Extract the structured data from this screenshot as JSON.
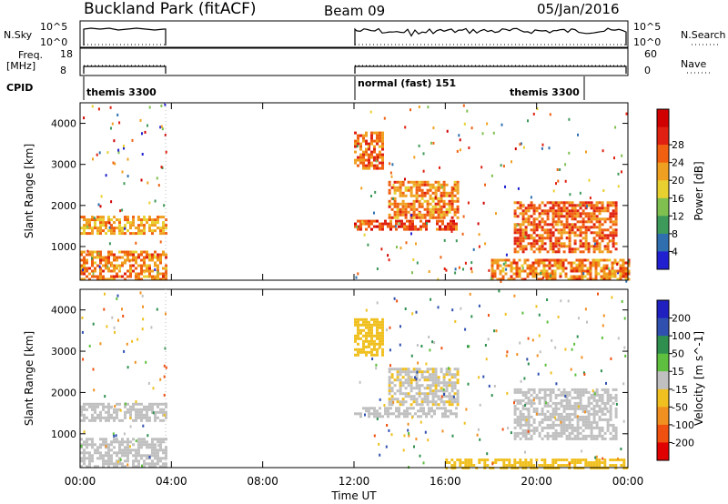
{
  "header": {
    "title": "Buckland Park (fitACF)",
    "beam": "Beam 09",
    "date": "05/Jan/2016"
  },
  "aux_panels": {
    "nsky_label": "N.Sky",
    "nsky_ticks": [
      "10^5",
      "10^0"
    ],
    "nsearch_label": "N.Search",
    "nsearch_ticks": [
      "10^5",
      "10^0"
    ],
    "freq_label_1": "Freq.",
    "freq_label_2": "[MHz]",
    "freq_ticks": [
      "18",
      "8"
    ],
    "nave_label": "Nave",
    "nave_ticks": [
      "60",
      "0"
    ],
    "cpid_label": "CPID",
    "cpid_items": [
      {
        "text": "themis 3300",
        "start": 0,
        "end": 3.75
      },
      {
        "text": "normal (fast) 151",
        "start": 12.0,
        "end": 21.5
      },
      {
        "text": "themis 3300",
        "start": 21.5,
        "end": 24.0
      }
    ]
  },
  "chart_data": [
    {
      "type": "heatmap",
      "name": "power",
      "xlabel": "",
      "ylabel": "Slant Range [km]",
      "xlim": [
        0,
        24
      ],
      "ylim": [
        180,
        4500
      ],
      "yticks": [
        "1000",
        "2000",
        "3000",
        "4000"
      ],
      "colorbar_label": "Power [dB]",
      "colorbar_ticks": [
        "4",
        "8",
        "12",
        "16",
        "20",
        "24",
        "28"
      ],
      "colors": [
        "#2020d0",
        "#2f6fb0",
        "#3e9a5a",
        "#7fc050",
        "#e8d030",
        "#f0a020",
        "#f06010",
        "#e02010",
        "#d00000"
      ],
      "data_gaps": [
        [
          3.75,
          12.0
        ]
      ],
      "bands": [
        {
          "t": [
            0,
            3.75
          ],
          "r": [
            1300,
            1750
          ],
          "v": 20
        },
        {
          "t": [
            0,
            3.75
          ],
          "r": [
            200,
            900
          ],
          "v": 22
        },
        {
          "t": [
            12,
            16.5
          ],
          "r": [
            1400,
            1650
          ],
          "v": 26
        },
        {
          "t": [
            13.5,
            16.5
          ],
          "r": [
            1700,
            2600
          ],
          "v": 22
        },
        {
          "t": [
            12,
            13.3
          ],
          "r": [
            2900,
            3800
          ],
          "v": 24
        },
        {
          "t": [
            19,
            23.5
          ],
          "r": [
            900,
            2100
          ],
          "v": 24
        },
        {
          "t": [
            18,
            24
          ],
          "r": [
            200,
            700
          ],
          "v": 22
        }
      ]
    },
    {
      "type": "heatmap",
      "name": "velocity",
      "xlabel": "Time UT",
      "ylabel": "Slant Range [km]",
      "xlim": [
        0,
        24
      ],
      "ylim": [
        180,
        4500
      ],
      "xticks": [
        "00:00",
        "04:00",
        "08:00",
        "12:00",
        "16:00",
        "20:00",
        "00:00"
      ],
      "yticks": [
        "1000",
        "2000",
        "3000",
        "4000"
      ],
      "colorbar_label": "Velocity [m s^-1]",
      "colorbar_ticks": [
        "200",
        "100",
        "50",
        "15",
        "-15",
        "-50",
        "-100",
        "-200"
      ],
      "colors": [
        "#2020c0",
        "#3050b0",
        "#2f8f4f",
        "#5fbf3f",
        "#c0c0c0",
        "#f0c020",
        "#f09020",
        "#f05010",
        "#e00000"
      ],
      "data_gaps": [
        [
          3.75,
          12.0
        ]
      ],
      "bands": [
        {
          "t": [
            0,
            3.75
          ],
          "r": [
            1300,
            1750
          ],
          "v": 0
        },
        {
          "t": [
            0,
            3.75
          ],
          "r": [
            200,
            900
          ],
          "v": 0
        },
        {
          "t": [
            12,
            16.5
          ],
          "r": [
            1400,
            1650
          ],
          "v": 0
        },
        {
          "t": [
            13.5,
            16.5
          ],
          "r": [
            1700,
            2600
          ],
          "v": -20
        },
        {
          "t": [
            12,
            13.3
          ],
          "r": [
            2900,
            3800
          ],
          "v": -60
        },
        {
          "t": [
            19,
            23.5
          ],
          "r": [
            900,
            2100
          ],
          "v": 0
        },
        {
          "t": [
            16,
            24
          ],
          "r": [
            200,
            400
          ],
          "v": -60
        }
      ]
    }
  ]
}
